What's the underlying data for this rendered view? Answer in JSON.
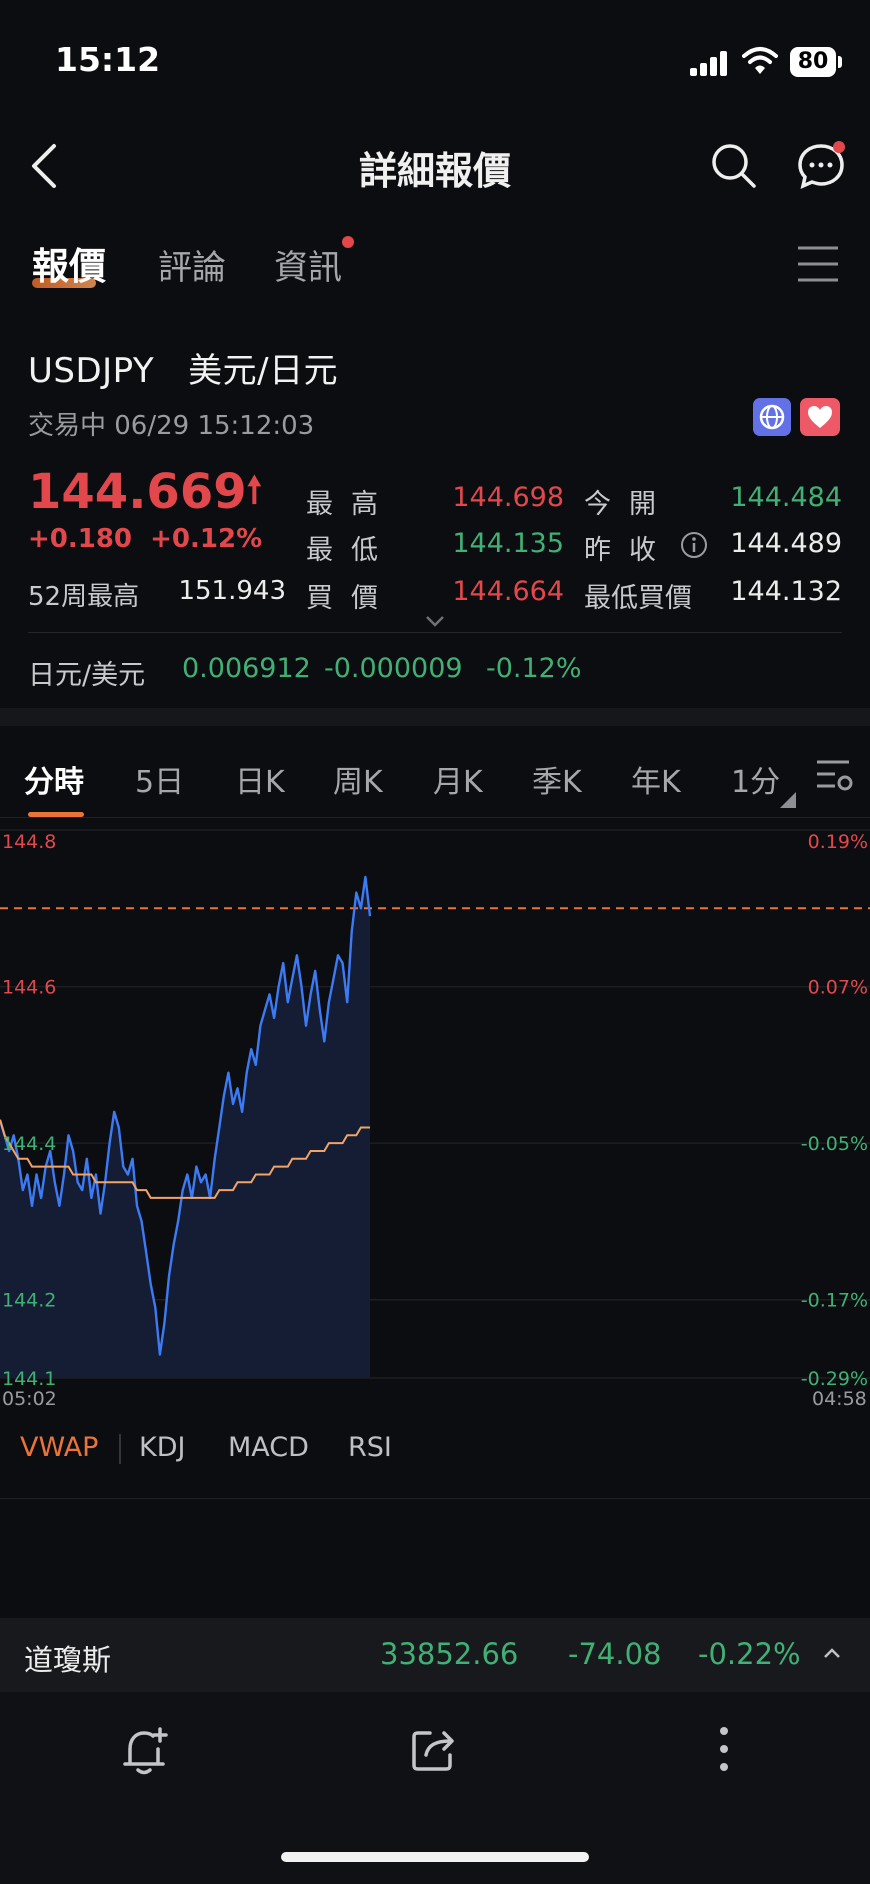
{
  "status_bar": {
    "time": "15:12",
    "battery": "80"
  },
  "header": {
    "title": "詳細報價"
  },
  "tabs": [
    {
      "label": "報價"
    },
    {
      "label": "評論"
    },
    {
      "label": "資訊"
    }
  ],
  "quote": {
    "symbol": "USDJPY   美元/日元",
    "status": "交易中 06/29 15:12:03",
    "price": "144.669",
    "change": "+0.180  +0.12%",
    "week52_label": "52周最高",
    "week52_value": "151.943",
    "high_label": "最高",
    "high_value": "144.698",
    "low_label": "最低",
    "low_value": "144.135",
    "bid_label": "買價",
    "bid_value": "144.664",
    "open_label": "今開",
    "open_value": "144.484",
    "prev_close_label": "昨收",
    "prev_close_value": "144.489",
    "min_bid_label": "最低買價",
    "min_bid_value": "144.132",
    "cross_label": "日元/美元",
    "cross_value": "0.006912",
    "cross_change": "-0.000009",
    "cross_pct": "-0.12%"
  },
  "chart_tabs": [
    "分時",
    "5日",
    "日K",
    "周K",
    "月K",
    "季K",
    "年K",
    "1分"
  ],
  "chart_data": {
    "type": "line",
    "y_ticks_left": [
      "144.8",
      "144.6",
      "144.4",
      "144.2",
      "144.1"
    ],
    "y_ticks_right": [
      "0.19%",
      "0.07%",
      "-0.05%",
      "-0.17%",
      "-0.29%"
    ],
    "ylim": [
      144.1,
      144.8
    ],
    "x_start_label": "05:02",
    "x_end_label": "04:58",
    "reference_line": 144.7,
    "series": [
      {
        "values": [
          144.43,
          144.41,
          144.39,
          144.41,
          144.38,
          144.34,
          144.36,
          144.32,
          144.36,
          144.33,
          144.37,
          144.39,
          144.35,
          144.32,
          144.36,
          144.41,
          144.39,
          144.35,
          144.34,
          144.38,
          144.33,
          144.36,
          144.31,
          144.35,
          144.4,
          144.44,
          144.42,
          144.37,
          144.36,
          144.38,
          144.32,
          144.3,
          144.26,
          144.22,
          144.19,
          144.13,
          144.17,
          144.23,
          144.27,
          144.3,
          144.34,
          144.36,
          144.33,
          144.37,
          144.35,
          144.36,
          144.33,
          144.38,
          144.42,
          144.46,
          144.49,
          144.45,
          144.47,
          144.44,
          144.49,
          144.52,
          144.5,
          144.55,
          144.57,
          144.59,
          144.56,
          144.6,
          144.63,
          144.58,
          144.61,
          144.64,
          144.6,
          144.55,
          144.59,
          144.62,
          144.57,
          144.53,
          144.58,
          144.61,
          144.64,
          144.63,
          144.58,
          144.67,
          144.72,
          144.7,
          144.74,
          144.69
        ]
      },
      {
        "values": [
          144.43,
          144.41,
          144.4,
          144.39,
          144.38,
          144.38,
          144.38,
          144.37,
          144.37,
          144.37,
          144.37,
          144.37,
          144.37,
          144.37,
          144.37,
          144.37,
          144.36,
          144.36,
          144.36,
          144.36,
          144.36,
          144.35,
          144.35,
          144.35,
          144.35,
          144.35,
          144.35,
          144.35,
          144.35,
          144.35,
          144.34,
          144.34,
          144.34,
          144.33,
          144.33,
          144.33,
          144.33,
          144.33,
          144.33,
          144.33,
          144.33,
          144.33,
          144.33,
          144.33,
          144.33,
          144.33,
          144.33,
          144.33,
          144.34,
          144.34,
          144.34,
          144.34,
          144.35,
          144.35,
          144.35,
          144.35,
          144.36,
          144.36,
          144.36,
          144.36,
          144.37,
          144.37,
          144.37,
          144.37,
          144.38,
          144.38,
          144.38,
          144.38,
          144.39,
          144.39,
          144.39,
          144.39,
          144.4,
          144.4,
          144.4,
          144.4,
          144.41,
          144.41,
          144.41,
          144.42,
          144.42,
          144.42
        ]
      }
    ]
  },
  "indicators": [
    "VWAP",
    "KDJ",
    "MACD",
    "RSI"
  ],
  "index_bar": {
    "name": "道瓊斯",
    "value": "33852.66",
    "change": "-74.08",
    "pct": "-0.22%"
  },
  "colors": {
    "up": "#e2484b",
    "down": "#41b074",
    "accent": "#e8743a",
    "line": "#3d7bf5",
    "vwap": "#f2a367"
  }
}
